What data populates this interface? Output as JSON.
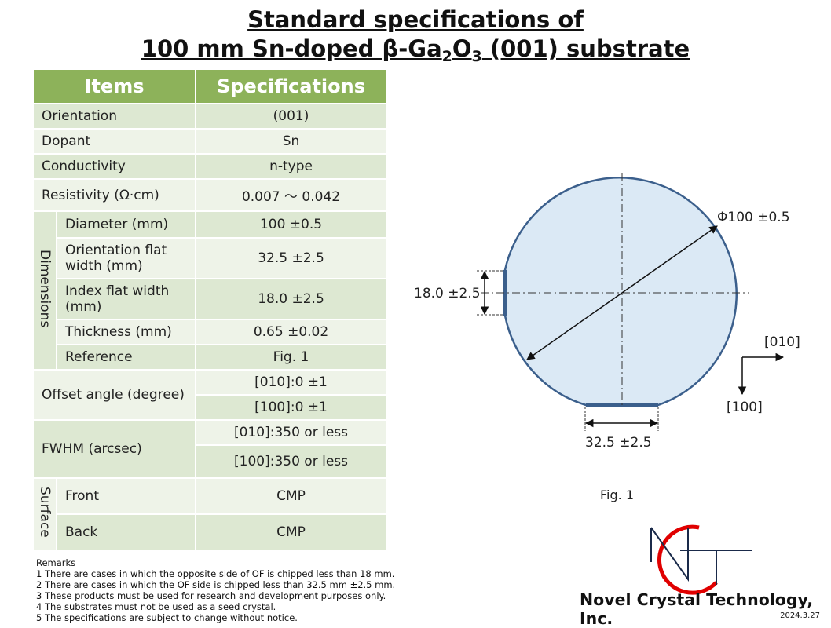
{
  "title": {
    "line1": "Standard specifications of",
    "line2_pre": "100 mm Sn-doped β-Ga",
    "line2_sub1": "2",
    "line2_mid": "O",
    "line2_sub2": "3",
    "line2_post": " (001) substrate"
  },
  "table": {
    "header_items": "Items",
    "header_specs": "Specifications",
    "orientation": {
      "label": "Orientation",
      "value": "(001)"
    },
    "dopant": {
      "label": "Dopant",
      "value": "Sn"
    },
    "conductivity": {
      "label": "Conductivity",
      "value": "n-type"
    },
    "resistivity": {
      "label": "Resistivity (Ω·cm)",
      "value": "0.007 ～ 0.042"
    },
    "dimensions_label": "Dimensions",
    "diameter": {
      "label": "Diameter (mm)",
      "value": "100 ±0.5"
    },
    "of_width": {
      "label": "Orientation flat width (mm)",
      "value": "32.5 ±2.5"
    },
    "if_width": {
      "label": "Index flat width (mm)",
      "value": "18.0 ±2.5"
    },
    "thickness": {
      "label": "Thickness (mm)",
      "value": "0.65 ±0.02"
    },
    "reference": {
      "label": "Reference",
      "value": "Fig. 1"
    },
    "offset": {
      "label": "Offset angle (degree)",
      "value1": "[010]:0 ±1",
      "value2": "[100]:0 ±1"
    },
    "fwhm": {
      "label": "FWHM (arcsec)",
      "value1": "[010]:350 or less",
      "value2": "[100]:350 or less"
    },
    "surface_label": "Surface",
    "front": {
      "label": "Front",
      "value": "CMP"
    },
    "back": {
      "label": "Back",
      "value": "CMP"
    }
  },
  "remarks": {
    "heading": "Remarks",
    "items": [
      "1 There are cases in which the opposite side of OF is chipped less than 18 mm.",
      "2 There are cases in which the OF side is chipped less than 32.5 mm ±2.5 mm.",
      "3 These products must be used for research and development purposes only.",
      "4 The substrates must not be used as a seed crystal.",
      "5 The specifications are subject to change without notice."
    ]
  },
  "figure": {
    "diameter_label": "Φ100 ±0.5",
    "index_flat_label": "18.0 ±2.5",
    "orientation_flat_label": "32.5 ±2.5",
    "axis_x_label": "[010]",
    "axis_y_label": "[100]",
    "caption": "Fig. 1",
    "wafer_fill": "#dbe9f5",
    "wafer_stroke": "#3b5f8c"
  },
  "logo": {
    "company": "Novel Crystal Technology, Inc.",
    "accent": "#e00000"
  },
  "date": "2024.3.27"
}
